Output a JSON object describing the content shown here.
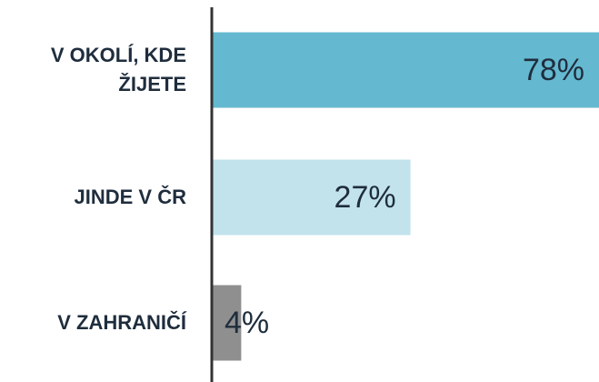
{
  "chart_data": {
    "type": "bar",
    "orientation": "horizontal",
    "categories": [
      "V OKOLÍ, KDE ŽIJETE",
      "JINDE V ČR",
      "V ZAHRANIČÍ"
    ],
    "values": [
      78,
      27,
      4
    ],
    "value_labels": [
      "78%",
      "27%",
      "4%"
    ],
    "colors": [
      "#64b8cf",
      "#c2e3ec",
      "#8f8f8f"
    ],
    "xlim": [
      0,
      52
    ]
  }
}
